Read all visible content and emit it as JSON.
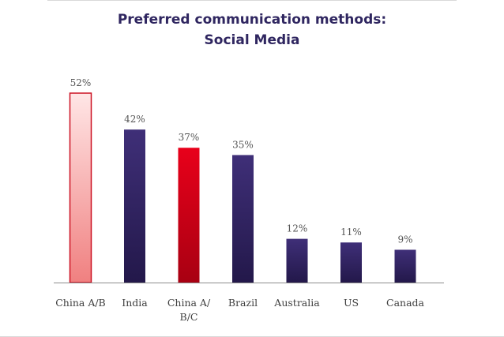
{
  "chart_data": {
    "type": "bar",
    "title_lines": [
      "Preferred communication methods:",
      "Social Media"
    ],
    "categories": [
      [
        "China A/B"
      ],
      [
        "India"
      ],
      [
        "China A/",
        "B/C"
      ],
      [
        "Brazil"
      ],
      [
        "Australia"
      ],
      [
        "US"
      ],
      [
        "Canada"
      ]
    ],
    "values": [
      52,
      42,
      37,
      35,
      12,
      11,
      9
    ],
    "value_labels": [
      "52%",
      "42%",
      "37%",
      "35%",
      "12%",
      "11%",
      "9%"
    ],
    "bar_styles": [
      "pink-gradient-outline",
      "purple-gradient",
      "red-gradient",
      "purple-gradient",
      "purple-gradient",
      "purple-gradient",
      "purple-gradient"
    ],
    "ylim": [
      0,
      52
    ],
    "xlabel": "",
    "ylabel": "",
    "grid": false,
    "legend": "none",
    "colors": {
      "purple_top": "#3f2f78",
      "purple_bottom": "#23184a",
      "red_top": "#e8001a",
      "red_bottom": "#a80012",
      "pink_top": "#ffe6e6",
      "pink_bottom": "#f08080",
      "pink_outline": "#cc1122",
      "axis": "#8c8c8c",
      "title": "#2f2660"
    }
  }
}
